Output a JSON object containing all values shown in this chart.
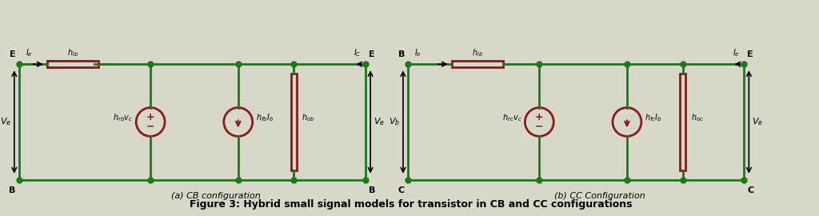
{
  "bg_color": "#d8d8c8",
  "wire_color": "#1a7a1a",
  "component_color": "#8b1a1a",
  "text_color": "#000000",
  "arrow_color": "#000000",
  "figure_caption": "Figure 3: Hybrid small signal models for transistor in CB and CC configurations",
  "cb_label": "(a) CB configuration",
  "cc_label": "(b) CC Configuration",
  "figsize": [
    10.24,
    2.7
  ],
  "dpi": 100
}
